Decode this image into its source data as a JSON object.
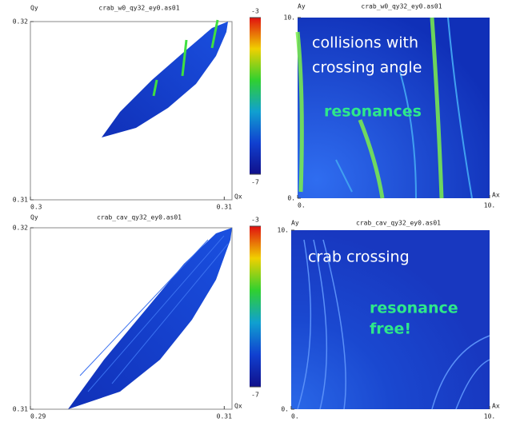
{
  "chart_data": [
    {
      "type": "footprint",
      "title": "crab_w0_qy32_ey0.as01",
      "xlabel": "Qx",
      "ylabel": "Qy",
      "xlim": [
        0.3,
        0.3104
      ],
      "xticks": [
        0.3,
        0.31
      ],
      "ylim": [
        0.31,
        0.32
      ],
      "yticks": [
        0.31,
        0.32
      ],
      "clim": [
        -7,
        -3
      ],
      "cticks": [
        -7,
        -3
      ]
    },
    {
      "type": "map",
      "title": "crab_w0_qy32_ey0.as01",
      "xlabel": "Ax",
      "ylabel": "Ay",
      "xlim": [
        0,
        10
      ],
      "xticks": [
        {
          "value": 0,
          "label": "0."
        },
        {
          "value": 10,
          "label": "10."
        }
      ],
      "ylim": [
        0,
        10
      ],
      "yticks": [
        {
          "value": 0,
          "label": "0."
        },
        {
          "value": 10,
          "label": "10."
        }
      ],
      "annotations": [
        "collisions with",
        "crossing angle",
        "resonances"
      ]
    },
    {
      "type": "footprint",
      "title": "crab_cav_qy32_ey0.as01",
      "xlabel": "Qx",
      "ylabel": "Qy",
      "xlim": [
        0.29,
        0.3108
      ],
      "xticks": [
        0.29,
        0.31
      ],
      "ylim": [
        0.31,
        0.32
      ],
      "yticks": [
        0.31,
        0.32
      ],
      "clim": [
        -7,
        -3
      ],
      "cticks": [
        -7,
        -3
      ]
    },
    {
      "type": "map",
      "title": "crab_cav_qy32_ey0.as01",
      "xlabel": "Ax",
      "ylabel": "Ay",
      "xlim": [
        0,
        10
      ],
      "xticks": [
        {
          "value": 0,
          "label": "0."
        },
        {
          "value": 10,
          "label": "10."
        }
      ],
      "ylim": [
        0,
        10
      ],
      "yticks": [
        {
          "value": 0,
          "label": "0."
        },
        {
          "value": 10,
          "label": "10."
        }
      ],
      "annotations": [
        "crab crossing",
        "resonance",
        "free!"
      ]
    }
  ]
}
